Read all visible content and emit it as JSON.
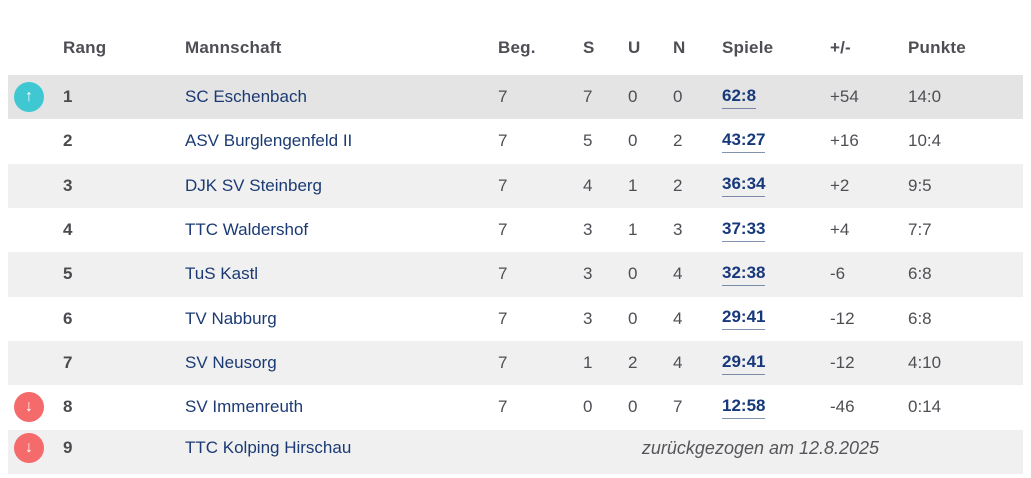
{
  "table": {
    "columns": [
      {
        "key": "rang",
        "label": "Rang"
      },
      {
        "key": "mannschaft",
        "label": "Mannschaft"
      },
      {
        "key": "beg",
        "label": "Beg."
      },
      {
        "key": "s",
        "label": "S"
      },
      {
        "key": "u",
        "label": "U"
      },
      {
        "key": "n",
        "label": "N"
      },
      {
        "key": "spiele",
        "label": "Spiele"
      },
      {
        "key": "plusminus",
        "label": "+/-"
      },
      {
        "key": "punkte",
        "label": "Punkte"
      }
    ],
    "icons": {
      "up": "↑",
      "down": "↓"
    },
    "colors": {
      "header_text": "#1a3a75",
      "team_text": "#1b3a73",
      "value_text": "#4e4f54",
      "row_stripe": "#f0f0f0",
      "leader_row": "#e4e4e4",
      "promotion_badge": "#3fc8d2",
      "relegation_badge": "#f56a6a",
      "link_text": "#17387b"
    },
    "rows": [
      {
        "rank": "1",
        "team": "SC Eschenbach",
        "beg": "7",
        "s": "7",
        "u": "0",
        "n": "0",
        "spiele": "62:8",
        "plusminus": "+54",
        "punkte": "14:0",
        "movement": "up",
        "highlight": true
      },
      {
        "rank": "2",
        "team": "ASV Burglengenfeld II",
        "beg": "7",
        "s": "5",
        "u": "0",
        "n": "2",
        "spiele": "43:27",
        "plusminus": "+16",
        "punkte": "10:4"
      },
      {
        "rank": "3",
        "team": "DJK SV Steinberg",
        "beg": "7",
        "s": "4",
        "u": "1",
        "n": "2",
        "spiele": "36:34",
        "plusminus": "+2",
        "punkte": "9:5"
      },
      {
        "rank": "4",
        "team": "TTC Waldershof",
        "beg": "7",
        "s": "3",
        "u": "1",
        "n": "3",
        "spiele": "37:33",
        "plusminus": "+4",
        "punkte": "7:7"
      },
      {
        "rank": "5",
        "team": "TuS Kastl",
        "beg": "7",
        "s": "3",
        "u": "0",
        "n": "4",
        "spiele": "32:38",
        "plusminus": "-6",
        "punkte": "6:8"
      },
      {
        "rank": "6",
        "team": "TV Nabburg",
        "beg": "7",
        "s": "3",
        "u": "0",
        "n": "4",
        "spiele": "29:41",
        "plusminus": "-12",
        "punkte": "6:8"
      },
      {
        "rank": "7",
        "team": "SV Neusorg",
        "beg": "7",
        "s": "1",
        "u": "2",
        "n": "4",
        "spiele": "29:41",
        "plusminus": "-12",
        "punkte": "4:10"
      },
      {
        "rank": "8",
        "team": "SV Immenreuth",
        "beg": "7",
        "s": "0",
        "u": "0",
        "n": "7",
        "spiele": "12:58",
        "plusminus": "-46",
        "punkte": "0:14",
        "movement": "down"
      },
      {
        "rank": "9",
        "team": "TTC Kolping Hirschau",
        "movement": "down",
        "note": "zurückgezogen am 12.8.2025"
      }
    ]
  }
}
